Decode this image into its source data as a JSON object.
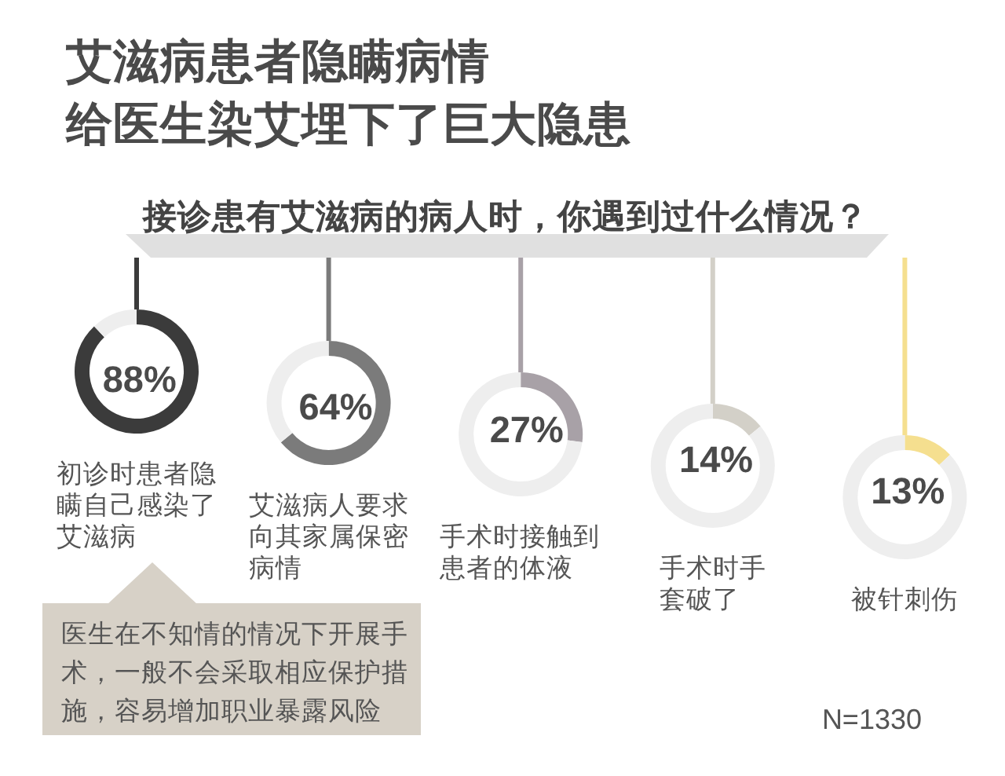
{
  "chart_data": [
    {
      "type": "other",
      "title": "艾滋病患者隐瞒病情给医生染艾埋下了巨大隐患",
      "subtitle": "接诊患有艾滋病的病人时，你遇到过什么情况？",
      "annotations": [
        "N=1330"
      ]
    },
    {
      "type": "donut",
      "title": "初诊时患者隐瞒自己感染了艾滋病",
      "categories": [
        null,
        null
      ],
      "values": [
        88,
        12
      ],
      "colors": [
        "#3b3b3b",
        "#eeeeee"
      ],
      "value_labels": [
        "88%",
        null
      ],
      "annotations": [
        "医生在不知情的情况下开展手术，一般不会采取相应保护措施，容易增加职业暴露风险"
      ]
    },
    {
      "type": "donut",
      "title": "艾滋病人要求向其家属保密病情",
      "categories": [
        null,
        null
      ],
      "values": [
        64,
        36
      ],
      "colors": [
        "#7b7b7b",
        "#eeeeee"
      ],
      "value_labels": [
        "64%",
        null
      ]
    },
    {
      "type": "donut",
      "title": "手术时接触到患者的体液",
      "categories": [
        null,
        null
      ],
      "values": [
        27,
        73
      ],
      "colors": [
        "#a8a1a7",
        "#eeeeee"
      ],
      "value_labels": [
        "27%",
        null
      ]
    },
    {
      "type": "donut",
      "title": "手术时手套破了",
      "categories": [
        null,
        null
      ],
      "values": [
        14,
        86
      ],
      "colors": [
        "#d3d0c8",
        "#eeeeee"
      ],
      "value_labels": [
        "14%",
        null
      ]
    },
    {
      "type": "donut",
      "title": "被针刺伤",
      "categories": [
        null,
        null
      ],
      "values": [
        13,
        87
      ],
      "colors": [
        "#f5df8f",
        "#eeeeee"
      ],
      "value_labels": [
        "13%",
        null
      ]
    }
  ]
}
